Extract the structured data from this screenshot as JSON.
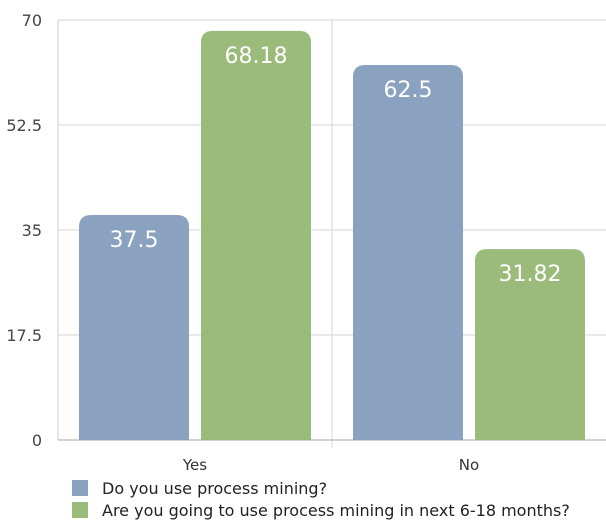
{
  "chart_data": {
    "type": "bar",
    "categories": [
      "Yes",
      "No"
    ],
    "series": [
      {
        "name": "Do you use process mining?",
        "values": [
          37.5,
          62.5
        ],
        "color": "#8aa2bf"
      },
      {
        "name": "Are you going to use process mining in next 6-18 months?",
        "values": [
          68.18,
          31.82
        ],
        "color": "#9bbb7b"
      }
    ],
    "value_labels": [
      [
        "37.5",
        "62.5"
      ],
      [
        "68.18",
        "31.82"
      ]
    ],
    "ylim": [
      0,
      70
    ],
    "yticks": [
      0,
      17.5,
      35,
      52.5,
      70
    ],
    "ytick_labels": [
      "0",
      "17.5",
      "35",
      "52.5",
      "70"
    ],
    "grid": true,
    "legend_position": "bottom-left"
  }
}
